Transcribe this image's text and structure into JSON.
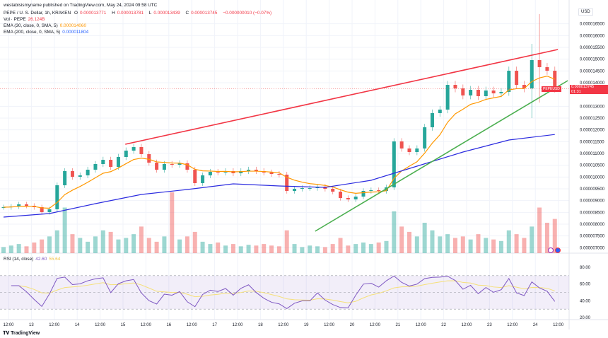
{
  "published": "westabisismyname published on TradingView.com, May 24, 2024 09:58 UTC",
  "legend": {
    "symbol": "PEPE / U. S. Dollar, 1h, KRAKEN",
    "o_label": "O",
    "o": "0.000013771",
    "h_label": "H",
    "h": "0.000013781",
    "l_label": "L",
    "l": "0.000013439",
    "c_label": "C",
    "c": "0.000013745",
    "change": "−0.000000010 (−0.07%)",
    "vol_label": "Vol · PEPE",
    "vol": "26.124B",
    "ema_label": "EMA (30, close, 0, SMA, 5)",
    "ema": "0.000014060",
    "sma_label": "EMA (200, close, 0, SMA, 5)",
    "sma": "0.000011804"
  },
  "rsi": {
    "label": "RSI (14, close)",
    "value": "42.60",
    "ma": "55.64"
  },
  "price_axis": {
    "currency": "USD",
    "labels": [
      "0.000016500",
      "0.000016000",
      "0.000015500",
      "0.000015000",
      "0.000014500",
      "0.000014000",
      "0.000013000",
      "0.000012500",
      "0.000012000",
      "0.000011500",
      "0.000011000",
      "0.000010500",
      "0.000010000",
      "0.000009500",
      "0.000009000",
      "0.000008500",
      "0.000008000",
      "0.000007500",
      "0.000007000"
    ],
    "last_price": "0.000013745",
    "countdown": "01:31",
    "symbol_tag": "PEPEUSD"
  },
  "rsi_axis": [
    "80.00",
    "60.00",
    "40.00",
    "20.00"
  ],
  "time_axis": [
    "12:00",
    "13",
    "12:00",
    "14",
    "12:00",
    "15",
    "12:00",
    "16",
    "12:00",
    "17",
    "12:00",
    "18",
    "12:00",
    "19",
    "12:00",
    "20",
    "12:00",
    "21",
    "12:00",
    "22",
    "12:00",
    "23",
    "12:00",
    "24",
    "12:00"
  ],
  "brand": "TradingView",
  "colors": {
    "up": "#26a69a",
    "down": "#ef5350",
    "ema": "#ff9800",
    "sma": "#2b2bdf",
    "resistance": "#f23645",
    "support": "#4caf50",
    "rsi": "#7e57c2",
    "rsi_ma": "#f5e07a"
  },
  "chart_data": {
    "type": "candlestick",
    "interval": "4h-approx",
    "closes": [
      8.72e-06,
      8.75e-06,
      8.84e-06,
      8.78e-06,
      8.72e-06,
      8.51e-06,
      8.63e-06,
      9.65e-06,
      1.025e-05,
      1.001e-05,
      1.007e-05,
      1.031e-05,
      1.055e-05,
      1.073e-05,
      1.043e-05,
      1.085e-05,
      1.112e-05,
      1.127e-05,
      1.097e-05,
      1.061e-05,
      1.031e-05,
      1.055e-05,
      1.052e-05,
      1.058e-05,
      1.031e-05,
      9.74e-06,
      1.007e-05,
      1.022e-05,
      1.019e-05,
      1.025e-05,
      1.016e-05,
      1.025e-05,
      1.031e-05,
      1.025e-05,
      1.019e-05,
      1.013e-05,
      1.01e-05,
      9.41e-06,
      9.5e-06,
      9.53e-06,
      9.53e-06,
      9.59e-06,
      9.5e-06,
      9.38e-06,
      9.11e-06,
      9.05e-06,
      9.17e-06,
      9.41e-06,
      9.44e-06,
      9.41e-06,
      9.56e-06,
      1.151e-05,
      1.121e-05,
      1.106e-05,
      1.121e-05,
      1.211e-05,
      1.271e-05,
      1.286e-05,
      1.391e-05,
      1.376e-05,
      1.346e-05,
      1.37e-05,
      1.343e-05,
      1.367e-05,
      1.355e-05,
      1.361e-05,
      1.451e-05,
      1.391e-05,
      1.376e-05,
      1.496e-05,
      1.466e-05,
      1.451e-05,
      1.3745e-05
    ],
    "volumes": [
      8,
      10,
      12,
      9,
      14,
      18,
      22,
      30,
      60,
      25,
      20,
      15,
      22,
      30,
      28,
      18,
      20,
      25,
      35,
      20,
      15,
      22,
      80,
      18,
      22,
      28,
      15,
      12,
      14,
      10,
      12,
      9,
      11,
      10,
      12,
      10,
      9,
      30,
      12,
      8,
      10,
      9,
      8,
      12,
      20,
      10,
      12,
      14,
      12,
      14,
      16,
      55,
      35,
      28,
      22,
      40,
      30,
      22,
      25,
      20,
      22,
      18,
      25,
      20,
      18,
      16,
      30,
      25,
      20,
      35,
      60,
      40,
      45
    ],
    "wick_overrides": {
      "70": {
        "high": 1.691e-05,
        "low": 1.316e-05
      },
      "69": {
        "high": 1.565e-05,
        "low": 1.25e-05
      }
    },
    "sma200": [
      8.3e-06,
      8.45e-06,
      8.87e-06,
      9.26e-06,
      9.47e-06,
      9.71e-06,
      9.62e-06,
      9.56e-06,
      9.86e-06,
      1.046e-05,
      1.106e-05,
      1.157e-05,
      1.1804e-05
    ],
    "trendlines": [
      {
        "name": "resistance",
        "from": [
          15.9,
          1.139e-05
        ],
        "to": [
          72.4,
          1.541e-05
        ]
      },
      {
        "name": "support",
        "from": [
          40.7,
          7.7e-06
        ],
        "to": [
          73.7,
          1.409e-05
        ]
      }
    ],
    "ylim": [
      6.8e-06,
      1.71e-05
    ]
  }
}
